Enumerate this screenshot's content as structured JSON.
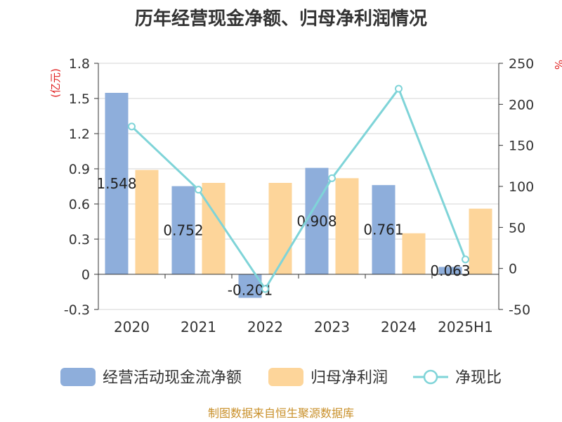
{
  "chart_data": {
    "type": "bar",
    "title": "历年经营现金净额、归母净利润情况",
    "categories": [
      "2020",
      "2021",
      "2022",
      "2023",
      "2024",
      "2025H1"
    ],
    "series": [
      {
        "name": "经营活动现金流净额",
        "type": "bar",
        "axis": "left",
        "color": "#8eaedb",
        "values": [
          1.548,
          0.752,
          -0.201,
          0.908,
          0.761,
          0.063
        ],
        "labels": [
          "1.548",
          "0.752",
          "-0.201",
          "0.908",
          "0.761",
          "0.063"
        ]
      },
      {
        "name": "归母净利润",
        "type": "bar",
        "axis": "left",
        "color": "#fdd59a",
        "values": [
          0.89,
          0.78,
          0.78,
          0.82,
          0.35,
          0.56
        ]
      },
      {
        "name": "净现比",
        "type": "line",
        "axis": "right",
        "color": "#7fd4d8",
        "values": [
          173,
          96,
          -25,
          110,
          219,
          11
        ]
      }
    ],
    "y_left": {
      "unit": "(亿元)",
      "min": -0.3,
      "max": 1.8,
      "ticks": [
        "1.8",
        "1.5",
        "1.2",
        "0.9",
        "0.6",
        "0.3",
        "0",
        "-0.3"
      ]
    },
    "y_right": {
      "unit": "%",
      "min": -50,
      "max": 250,
      "ticks": [
        "250",
        "200",
        "150",
        "100",
        "50",
        "0",
        "-50"
      ]
    },
    "grid": true,
    "legend_position": "bottom"
  },
  "source": "制图数据来自恒生聚源数据库"
}
